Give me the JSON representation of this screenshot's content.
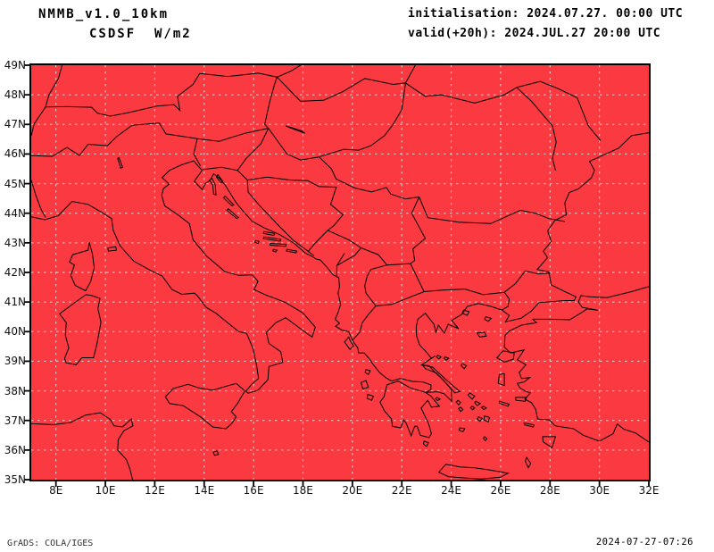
{
  "header": {
    "model": "NMMB_v1.0_10km",
    "variable": "CSDSF  W/m2",
    "init_line": "initialisation: 2024.07.27. 00:00 UTC",
    "valid_line": "valid(+20h): 2024.JUL.27 20:00 UTC"
  },
  "map": {
    "fill_color": "#fa3a40",
    "coast_color": "#000000",
    "border_line_color": "#000000",
    "grid_color": "#d8d8d8",
    "frame_color": "#000000",
    "lat_labels": [
      "49N",
      "48N",
      "47N",
      "46N",
      "45N",
      "44N",
      "43N",
      "42N",
      "41N",
      "40N",
      "39N",
      "38N",
      "37N",
      "36N",
      "35N"
    ],
    "lon_labels": [
      "8E",
      "10E",
      "12E",
      "14E",
      "16E",
      "18E",
      "20E",
      "22E",
      "24E",
      "26E",
      "28E",
      "30E",
      "32E"
    ],
    "lat_range": [
      35,
      49
    ],
    "lon_range": [
      7,
      32
    ],
    "grid_lat_step_deg": 1,
    "grid_lon_step_deg": 2
  },
  "footer": {
    "grads_credit": "GrADS: COLA/IGES",
    "timestamp": "2024-07-27-07:26"
  }
}
